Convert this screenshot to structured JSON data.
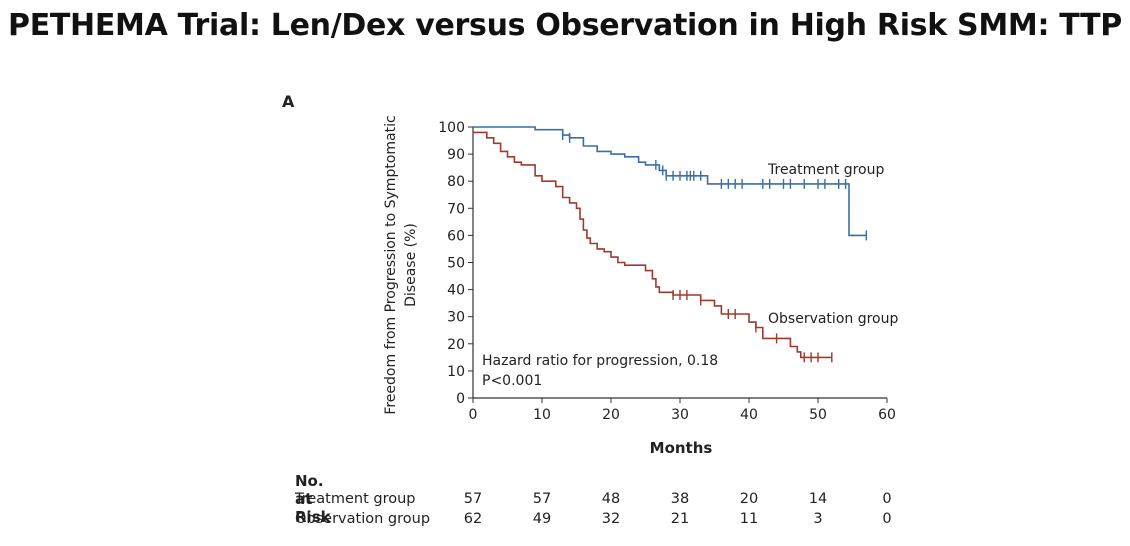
{
  "slide": {
    "title": "PETHEMA Trial: Len/Dex versus Observation in High Risk SMM: TTP"
  },
  "chart_data": {
    "type": "line",
    "panel_label": "A",
    "xlabel": "Months",
    "ylabel_line1": "Freedom from Progression to Symptomatic",
    "ylabel_line2": "Disease (%)",
    "xlim": [
      0,
      60
    ],
    "ylim": [
      0,
      100
    ],
    "xticks": [
      0,
      10,
      20,
      30,
      40,
      50,
      60
    ],
    "yticks": [
      0,
      10,
      20,
      30,
      40,
      50,
      60,
      70,
      80,
      90,
      100
    ],
    "grid": false,
    "annotation_line1": "Hazard ratio for progression, 0.18",
    "annotation_line2": "P<0.001",
    "series": [
      {
        "name": "Treatment group",
        "color": "#3a6fa6",
        "step_points": [
          [
            0,
            100
          ],
          [
            9,
            100
          ],
          [
            9,
            99
          ],
          [
            13,
            99
          ],
          [
            13,
            97
          ],
          [
            14,
            97
          ],
          [
            14,
            96
          ],
          [
            16,
            96
          ],
          [
            16,
            93
          ],
          [
            18,
            93
          ],
          [
            18,
            91
          ],
          [
            20,
            91
          ],
          [
            20,
            90
          ],
          [
            22,
            90
          ],
          [
            22,
            89
          ],
          [
            24,
            89
          ],
          [
            24,
            87
          ],
          [
            25,
            87
          ],
          [
            25,
            86
          ],
          [
            27,
            86
          ],
          [
            27,
            84
          ],
          [
            28,
            84
          ],
          [
            28,
            82
          ],
          [
            34,
            82
          ],
          [
            34,
            79
          ],
          [
            54.5,
            79
          ],
          [
            54.5,
            60
          ],
          [
            57,
            60
          ]
        ],
        "censor_x": [
          13,
          14,
          26.5,
          27.5,
          28,
          29,
          30,
          31,
          31.5,
          32,
          33,
          36,
          37,
          38,
          39,
          42,
          43,
          45,
          46,
          48,
          50,
          51,
          53,
          54,
          57
        ],
        "end_label": "Treatment group"
      },
      {
        "name": "Observation group",
        "color": "#9e3a2f",
        "step_points": [
          [
            0,
            98
          ],
          [
            2,
            98
          ],
          [
            2,
            96
          ],
          [
            3,
            96
          ],
          [
            3,
            94
          ],
          [
            4,
            94
          ],
          [
            4,
            91
          ],
          [
            5,
            91
          ],
          [
            5,
            89
          ],
          [
            6,
            89
          ],
          [
            6,
            87
          ],
          [
            7,
            87
          ],
          [
            7,
            86
          ],
          [
            9,
            86
          ],
          [
            9,
            82
          ],
          [
            10,
            82
          ],
          [
            10,
            80
          ],
          [
            12,
            80
          ],
          [
            12,
            78
          ],
          [
            13,
            78
          ],
          [
            13,
            74
          ],
          [
            14,
            74
          ],
          [
            14,
            72
          ],
          [
            15,
            72
          ],
          [
            15,
            70
          ],
          [
            15.5,
            70
          ],
          [
            15.5,
            66
          ],
          [
            16,
            66
          ],
          [
            16,
            62
          ],
          [
            16.5,
            62
          ],
          [
            16.5,
            59
          ],
          [
            17,
            59
          ],
          [
            17,
            57
          ],
          [
            18,
            57
          ],
          [
            18,
            55
          ],
          [
            19,
            55
          ],
          [
            19,
            54
          ],
          [
            20,
            54
          ],
          [
            20,
            52
          ],
          [
            21,
            52
          ],
          [
            21,
            50
          ],
          [
            22,
            50
          ],
          [
            22,
            49
          ],
          [
            25,
            49
          ],
          [
            25,
            47
          ],
          [
            26,
            47
          ],
          [
            26,
            44
          ],
          [
            26.5,
            44
          ],
          [
            26.5,
            41
          ],
          [
            27,
            41
          ],
          [
            27,
            39
          ],
          [
            29,
            39
          ],
          [
            29,
            38
          ],
          [
            33,
            38
          ],
          [
            33,
            36
          ],
          [
            35,
            36
          ],
          [
            35,
            34
          ],
          [
            36,
            34
          ],
          [
            36,
            31
          ],
          [
            40,
            31
          ],
          [
            40,
            28
          ],
          [
            41,
            28
          ],
          [
            41,
            26
          ],
          [
            42,
            26
          ],
          [
            42,
            22
          ],
          [
            46,
            22
          ],
          [
            46,
            19
          ],
          [
            47,
            19
          ],
          [
            47,
            17
          ],
          [
            47.5,
            17
          ],
          [
            47.5,
            15
          ],
          [
            52,
            15
          ]
        ],
        "censor_x": [
          29,
          30,
          31,
          33,
          37,
          38,
          41,
          44,
          48,
          49,
          50,
          52
        ],
        "end_label": "Observation group"
      }
    ],
    "risk_table": {
      "title": "No. at Risk",
      "times": [
        0,
        10,
        20,
        30,
        40,
        50,
        60
      ],
      "rows": [
        {
          "label": "Treatment group",
          "values": [
            "57",
            "57",
            "48",
            "38",
            "20",
            "14",
            "0"
          ]
        },
        {
          "label": "Observation group",
          "values": [
            "62",
            "49",
            "32",
            "21",
            "11",
            "3",
            "0"
          ]
        }
      ]
    }
  }
}
